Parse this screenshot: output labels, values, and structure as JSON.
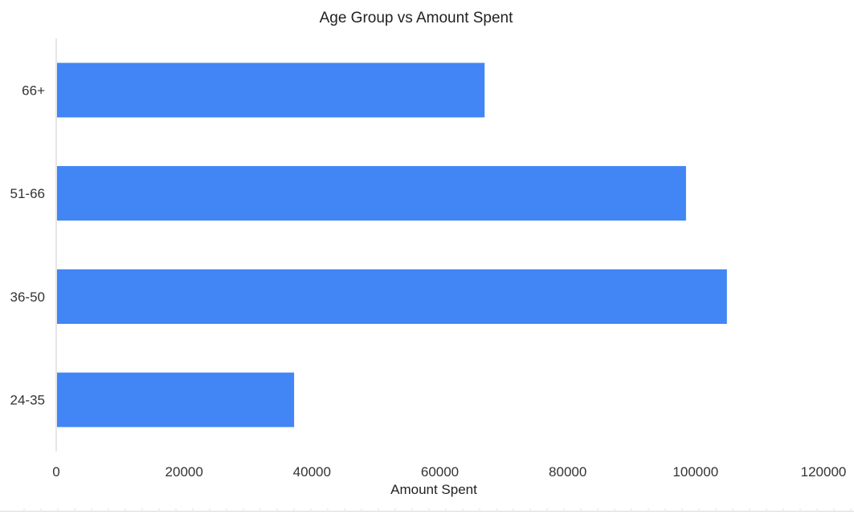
{
  "chart_data": {
    "type": "bar",
    "orientation": "horizontal",
    "title": "Age Group vs Amount Spent",
    "xlabel": "Amount Spent",
    "ylabel": "",
    "categories": [
      "24-35",
      "36-50",
      "51-66",
      "66+"
    ],
    "values": [
      37200,
      104900,
      98500,
      67000
    ],
    "xlim": [
      0,
      120000
    ],
    "xticks": [
      "0",
      "20000",
      "40000",
      "60000",
      "80000",
      "100000",
      "120000"
    ],
    "grid": false,
    "legend": "none",
    "bar_color": "#4285f4"
  }
}
